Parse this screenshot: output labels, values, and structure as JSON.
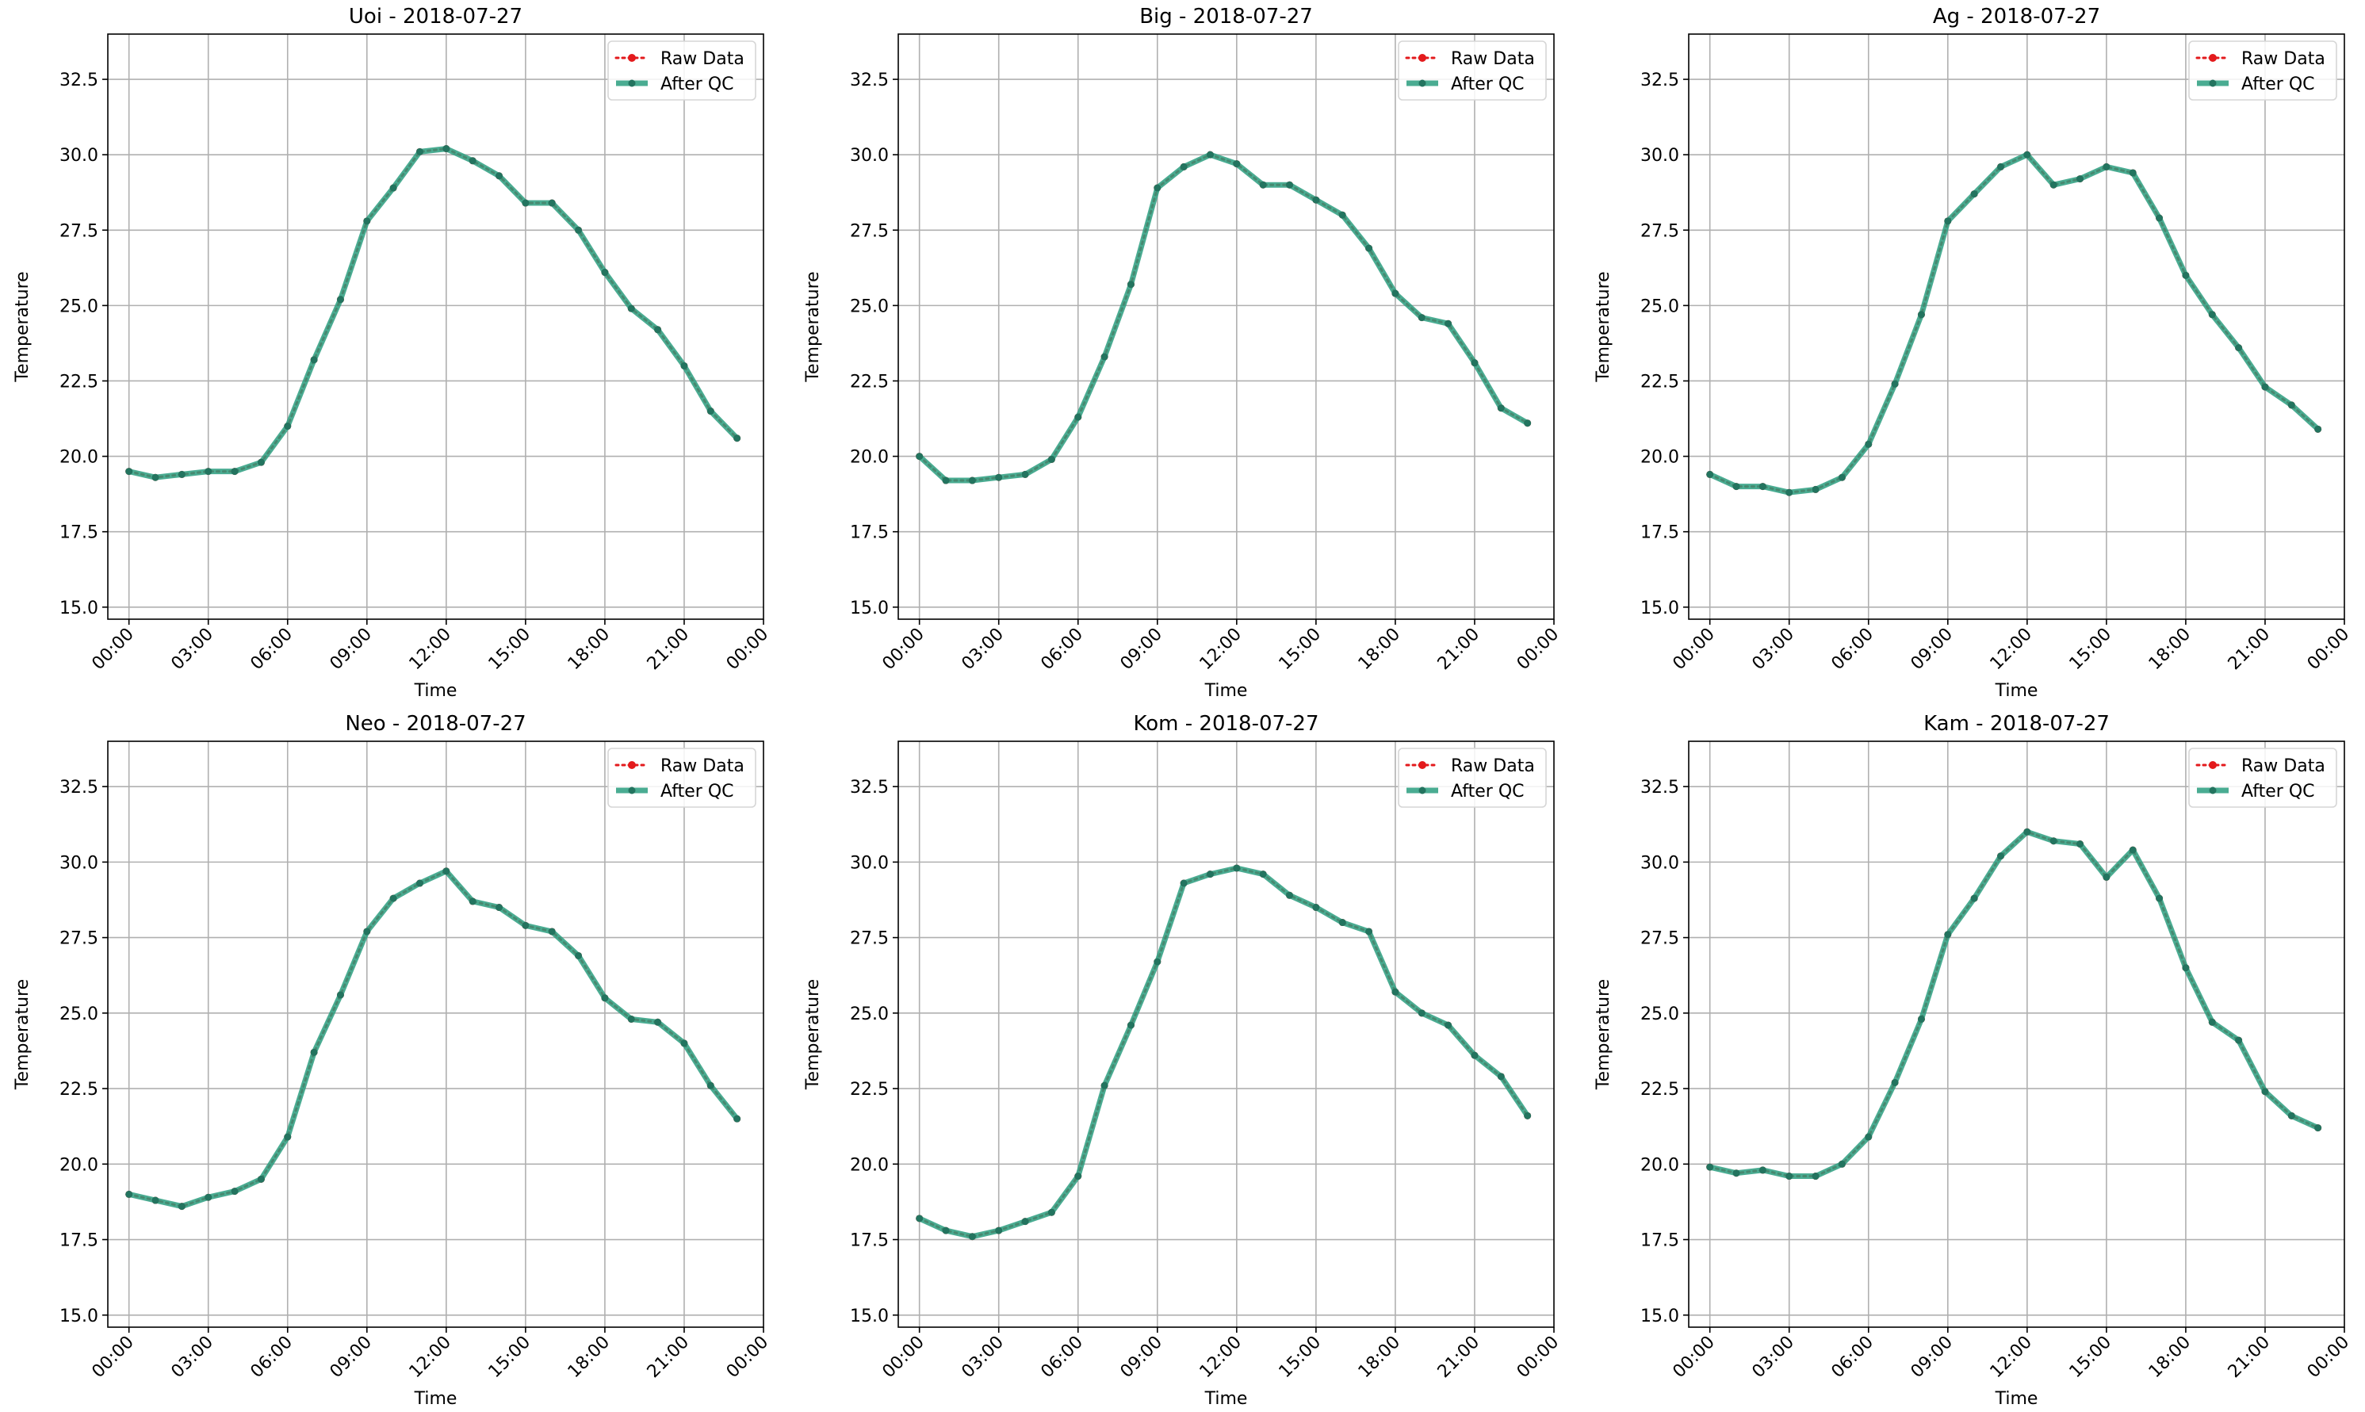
{
  "colors": {
    "raw": "#e31a1c",
    "qc": "#2a9d7f",
    "qc_marker": "#23745f",
    "grid": "#b0b0b0",
    "axis": "#000000"
  },
  "legend": {
    "raw_label": "Raw Data",
    "qc_label": "After QC",
    "placement": "upper right"
  },
  "chart_data": [
    {
      "type": "line",
      "title": "Uoi - 2018-07-27",
      "xlabel": "Time",
      "ylabel": "Temperature",
      "xlim": [
        -0.8,
        24.0
      ],
      "ylim": [
        14.6,
        34.0
      ],
      "grid": true,
      "xticks": [
        0,
        3,
        6,
        9,
        12,
        15,
        18,
        21,
        24
      ],
      "xtick_labels": [
        "00:00",
        "03:00",
        "06:00",
        "09:00",
        "12:00",
        "15:00",
        "18:00",
        "21:00",
        "00:00"
      ],
      "yticks": [
        15.0,
        17.5,
        20.0,
        22.5,
        25.0,
        27.5,
        30.0,
        32.5
      ],
      "ytick_labels": [
        "15.0",
        "17.5",
        "20.0",
        "22.5",
        "25.0",
        "27.5",
        "30.0",
        "32.5"
      ],
      "x": [
        0,
        1,
        2,
        3,
        4,
        5,
        6,
        7,
        8,
        9,
        10,
        11,
        12,
        13,
        14,
        15,
        16,
        17,
        18,
        19,
        20,
        21,
        22,
        23
      ],
      "series": [
        {
          "name": "Raw Data",
          "values": [
            19.5,
            19.3,
            19.4,
            19.5,
            19.5,
            19.8,
            21.0,
            23.2,
            25.2,
            27.8,
            28.9,
            30.1,
            30.2,
            29.8,
            29.3,
            28.4,
            28.4,
            27.5,
            26.1,
            24.9,
            24.2,
            23.0,
            21.5,
            20.6
          ]
        },
        {
          "name": "After QC",
          "values": [
            19.5,
            19.3,
            19.4,
            19.5,
            19.5,
            19.8,
            21.0,
            23.2,
            25.2,
            27.8,
            28.9,
            30.1,
            30.2,
            29.8,
            29.3,
            28.4,
            28.4,
            27.5,
            26.1,
            24.9,
            24.2,
            23.0,
            21.5,
            20.6
          ]
        }
      ]
    },
    {
      "type": "line",
      "title": "Big - 2018-07-27",
      "xlabel": "Time",
      "ylabel": "Temperature",
      "xlim": [
        -0.8,
        24.0
      ],
      "ylim": [
        14.6,
        34.0
      ],
      "grid": true,
      "xticks": [
        0,
        3,
        6,
        9,
        12,
        15,
        18,
        21,
        24
      ],
      "xtick_labels": [
        "00:00",
        "03:00",
        "06:00",
        "09:00",
        "12:00",
        "15:00",
        "18:00",
        "21:00",
        "00:00"
      ],
      "yticks": [
        15.0,
        17.5,
        20.0,
        22.5,
        25.0,
        27.5,
        30.0,
        32.5
      ],
      "ytick_labels": [
        "15.0",
        "17.5",
        "20.0",
        "22.5",
        "25.0",
        "27.5",
        "30.0",
        "32.5"
      ],
      "x": [
        0,
        1,
        2,
        3,
        4,
        5,
        6,
        7,
        8,
        9,
        10,
        11,
        12,
        13,
        14,
        15,
        16,
        17,
        18,
        19,
        20,
        21,
        22,
        23
      ],
      "series": [
        {
          "name": "Raw Data",
          "values": [
            20.0,
            19.2,
            19.2,
            19.3,
            19.4,
            19.9,
            21.3,
            23.3,
            25.7,
            28.9,
            29.6,
            30.0,
            29.7,
            29.0,
            29.0,
            28.5,
            28.0,
            26.9,
            25.4,
            24.6,
            24.4,
            23.1,
            21.6,
            21.1
          ]
        },
        {
          "name": "After QC",
          "values": [
            20.0,
            19.2,
            19.2,
            19.3,
            19.4,
            19.9,
            21.3,
            23.3,
            25.7,
            28.9,
            29.6,
            30.0,
            29.7,
            29.0,
            29.0,
            28.5,
            28.0,
            26.9,
            25.4,
            24.6,
            24.4,
            23.1,
            21.6,
            21.1
          ]
        }
      ]
    },
    {
      "type": "line",
      "title": "Ag - 2018-07-27",
      "xlabel": "Time",
      "ylabel": "Temperature",
      "xlim": [
        -0.8,
        24.0
      ],
      "ylim": [
        14.6,
        34.0
      ],
      "grid": true,
      "xticks": [
        0,
        3,
        6,
        9,
        12,
        15,
        18,
        21,
        24
      ],
      "xtick_labels": [
        "00:00",
        "03:00",
        "06:00",
        "09:00",
        "12:00",
        "15:00",
        "18:00",
        "21:00",
        "00:00"
      ],
      "yticks": [
        15.0,
        17.5,
        20.0,
        22.5,
        25.0,
        27.5,
        30.0,
        32.5
      ],
      "ytick_labels": [
        "15.0",
        "17.5",
        "20.0",
        "22.5",
        "25.0",
        "27.5",
        "30.0",
        "32.5"
      ],
      "x": [
        0,
        1,
        2,
        3,
        4,
        5,
        6,
        7,
        8,
        9,
        10,
        11,
        12,
        13,
        14,
        15,
        16,
        17,
        18,
        19,
        20,
        21,
        22,
        23
      ],
      "series": [
        {
          "name": "Raw Data",
          "values": [
            19.4,
            19.0,
            19.0,
            18.8,
            18.9,
            19.3,
            20.4,
            22.4,
            24.7,
            27.8,
            28.7,
            29.6,
            30.0,
            29.0,
            29.2,
            29.6,
            29.4,
            27.9,
            26.0,
            24.7,
            23.6,
            22.3,
            21.7,
            20.9
          ]
        },
        {
          "name": "After QC",
          "values": [
            19.4,
            19.0,
            19.0,
            18.8,
            18.9,
            19.3,
            20.4,
            22.4,
            24.7,
            27.8,
            28.7,
            29.6,
            30.0,
            29.0,
            29.2,
            29.6,
            29.4,
            27.9,
            26.0,
            24.7,
            23.6,
            22.3,
            21.7,
            20.9
          ]
        }
      ]
    },
    {
      "type": "line",
      "title": "Neo - 2018-07-27",
      "xlabel": "Time",
      "ylabel": "Temperature",
      "xlim": [
        -0.8,
        24.0
      ],
      "ylim": [
        14.6,
        34.0
      ],
      "grid": true,
      "xticks": [
        0,
        3,
        6,
        9,
        12,
        15,
        18,
        21,
        24
      ],
      "xtick_labels": [
        "00:00",
        "03:00",
        "06:00",
        "09:00",
        "12:00",
        "15:00",
        "18:00",
        "21:00",
        "00:00"
      ],
      "yticks": [
        15.0,
        17.5,
        20.0,
        22.5,
        25.0,
        27.5,
        30.0,
        32.5
      ],
      "ytick_labels": [
        "15.0",
        "17.5",
        "20.0",
        "22.5",
        "25.0",
        "27.5",
        "30.0",
        "32.5"
      ],
      "x": [
        0,
        1,
        2,
        3,
        4,
        5,
        6,
        7,
        8,
        9,
        10,
        11,
        12,
        13,
        14,
        15,
        16,
        17,
        18,
        19,
        20,
        21,
        22,
        23
      ],
      "series": [
        {
          "name": "Raw Data",
          "values": [
            19.0,
            18.8,
            18.6,
            18.9,
            19.1,
            19.5,
            20.9,
            23.7,
            25.6,
            27.7,
            28.8,
            29.3,
            29.7,
            28.7,
            28.5,
            27.9,
            27.7,
            26.9,
            25.5,
            24.8,
            24.7,
            24.0,
            22.6,
            21.5
          ]
        },
        {
          "name": "After QC",
          "values": [
            19.0,
            18.8,
            18.6,
            18.9,
            19.1,
            19.5,
            20.9,
            23.7,
            25.6,
            27.7,
            28.8,
            29.3,
            29.7,
            28.7,
            28.5,
            27.9,
            27.7,
            26.9,
            25.5,
            24.8,
            24.7,
            24.0,
            22.6,
            21.5
          ]
        }
      ]
    },
    {
      "type": "line",
      "title": "Kom - 2018-07-27",
      "xlabel": "Time",
      "ylabel": "Temperature",
      "xlim": [
        -0.8,
        24.0
      ],
      "ylim": [
        14.6,
        34.0
      ],
      "grid": true,
      "xticks": [
        0,
        3,
        6,
        9,
        12,
        15,
        18,
        21,
        24
      ],
      "xtick_labels": [
        "00:00",
        "03:00",
        "06:00",
        "09:00",
        "12:00",
        "15:00",
        "18:00",
        "21:00",
        "00:00"
      ],
      "yticks": [
        15.0,
        17.5,
        20.0,
        22.5,
        25.0,
        27.5,
        30.0,
        32.5
      ],
      "ytick_labels": [
        "15.0",
        "17.5",
        "20.0",
        "22.5",
        "25.0",
        "27.5",
        "30.0",
        "32.5"
      ],
      "x": [
        0,
        1,
        2,
        3,
        4,
        5,
        6,
        7,
        8,
        9,
        10,
        11,
        12,
        13,
        14,
        15,
        16,
        17,
        18,
        19,
        20,
        21,
        22,
        23
      ],
      "series": [
        {
          "name": "Raw Data",
          "values": [
            18.2,
            17.8,
            17.6,
            17.8,
            18.1,
            18.4,
            19.6,
            22.6,
            24.6,
            26.7,
            29.3,
            29.6,
            29.8,
            29.6,
            28.9,
            28.5,
            28.0,
            27.7,
            25.7,
            25.0,
            24.6,
            23.6,
            22.9,
            21.6
          ]
        },
        {
          "name": "After QC",
          "values": [
            18.2,
            17.8,
            17.6,
            17.8,
            18.1,
            18.4,
            19.6,
            22.6,
            24.6,
            26.7,
            29.3,
            29.6,
            29.8,
            29.6,
            28.9,
            28.5,
            28.0,
            27.7,
            25.7,
            25.0,
            24.6,
            23.6,
            22.9,
            21.6
          ]
        }
      ]
    },
    {
      "type": "line",
      "title": "Kam - 2018-07-27",
      "xlabel": "Time",
      "ylabel": "Temperature",
      "xlim": [
        -0.8,
        24.0
      ],
      "ylim": [
        14.6,
        34.0
      ],
      "grid": true,
      "xticks": [
        0,
        3,
        6,
        9,
        12,
        15,
        18,
        21,
        24
      ],
      "xtick_labels": [
        "00:00",
        "03:00",
        "06:00",
        "09:00",
        "12:00",
        "15:00",
        "18:00",
        "21:00",
        "00:00"
      ],
      "yticks": [
        15.0,
        17.5,
        20.0,
        22.5,
        25.0,
        27.5,
        30.0,
        32.5
      ],
      "ytick_labels": [
        "15.0",
        "17.5",
        "20.0",
        "22.5",
        "25.0",
        "27.5",
        "30.0",
        "32.5"
      ],
      "x": [
        0,
        1,
        2,
        3,
        4,
        5,
        6,
        7,
        8,
        9,
        10,
        11,
        12,
        13,
        14,
        15,
        16,
        17,
        18,
        19,
        20,
        21,
        22,
        23
      ],
      "series": [
        {
          "name": "Raw Data",
          "values": [
            19.9,
            19.7,
            19.8,
            19.6,
            19.6,
            20.0,
            20.9,
            22.7,
            24.8,
            27.6,
            28.8,
            30.2,
            31.0,
            30.7,
            30.6,
            29.5,
            30.4,
            28.8,
            26.5,
            24.7,
            24.1,
            22.4,
            21.6,
            21.2
          ]
        },
        {
          "name": "After QC",
          "values": [
            19.9,
            19.7,
            19.8,
            19.6,
            19.6,
            20.0,
            20.9,
            22.7,
            24.8,
            27.6,
            28.8,
            30.2,
            31.0,
            30.7,
            30.6,
            29.5,
            30.4,
            28.8,
            26.5,
            24.7,
            24.1,
            22.4,
            21.6,
            21.2
          ]
        }
      ]
    }
  ]
}
